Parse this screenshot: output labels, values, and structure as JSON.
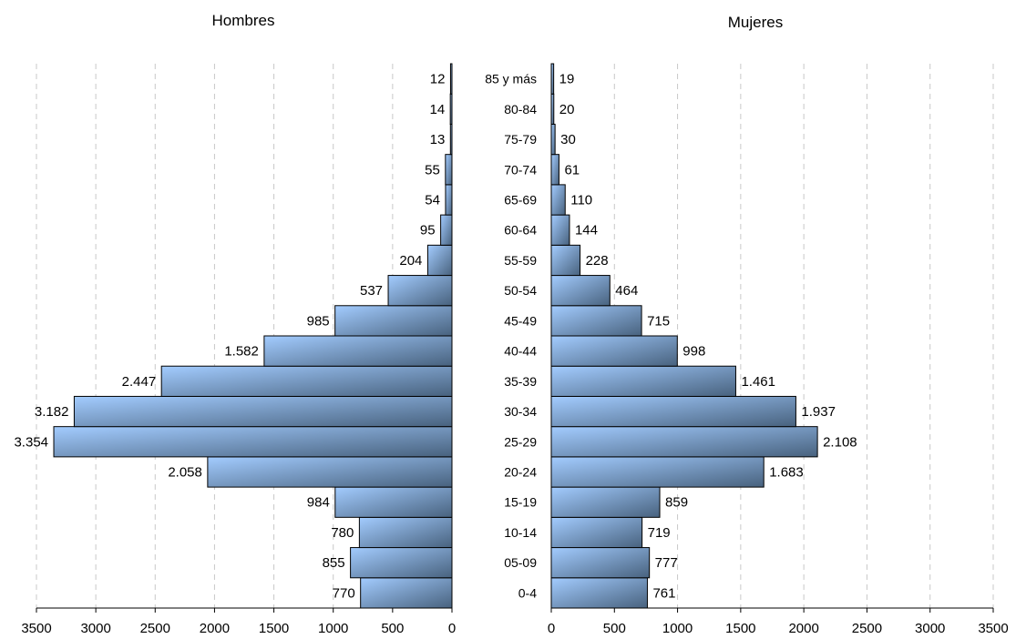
{
  "chart_data": [
    {
      "type": "bar",
      "orientation": "horizontal",
      "direction": "leftward",
      "title": "Hombres",
      "categories": [
        "0-4",
        "05-09",
        "10-14",
        "15-19",
        "20-24",
        "25-29",
        "30-34",
        "35-39",
        "40-44",
        "45-49",
        "50-54",
        "55-59",
        "60-64",
        "65-69",
        "70-74",
        "75-79",
        "80-84",
        "85 y más"
      ],
      "values": [
        770,
        855,
        780,
        984,
        2058,
        3354,
        3182,
        2447,
        1582,
        985,
        537,
        204,
        95,
        54,
        55,
        13,
        14,
        12
      ],
      "value_labels": [
        "770",
        "855",
        "780",
        "984",
        "2.058",
        "3.354",
        "3.182",
        "2.447",
        "1.582",
        "985",
        "537",
        "204",
        "95",
        "54",
        "55",
        "13",
        "14",
        "12"
      ],
      "xlim": [
        0,
        3500
      ],
      "x_ticks": [
        "0",
        "500",
        "1000",
        "1500",
        "2000",
        "2500",
        "3000",
        "3500"
      ],
      "grid": true
    },
    {
      "type": "bar",
      "orientation": "horizontal",
      "direction": "rightward",
      "title": "Mujeres",
      "categories": [
        "0-4",
        "05-09",
        "10-14",
        "15-19",
        "20-24",
        "25-29",
        "30-34",
        "35-39",
        "40-44",
        "45-49",
        "50-54",
        "55-59",
        "60-64",
        "65-69",
        "70-74",
        "75-79",
        "80-84",
        "85 y más"
      ],
      "values": [
        761,
        777,
        719,
        859,
        1683,
        2108,
        1937,
        1461,
        998,
        715,
        464,
        228,
        144,
        110,
        61,
        30,
        20,
        19
      ],
      "value_labels": [
        "761",
        "777",
        "719",
        "859",
        "1.683",
        "2.108",
        "1.937",
        "1.461",
        "998",
        "715",
        "464",
        "228",
        "144",
        "110",
        "61",
        "30",
        "20",
        "19"
      ],
      "xlim": [
        0,
        3500
      ],
      "x_ticks": [
        "0",
        "500",
        "1000",
        "1500",
        "2000",
        "2500",
        "3000",
        "3500"
      ],
      "grid": true
    }
  ],
  "colors": {
    "bar_light": "#a3ccff",
    "bar_dark": "#48627e",
    "grid": "#c8c8c8"
  }
}
